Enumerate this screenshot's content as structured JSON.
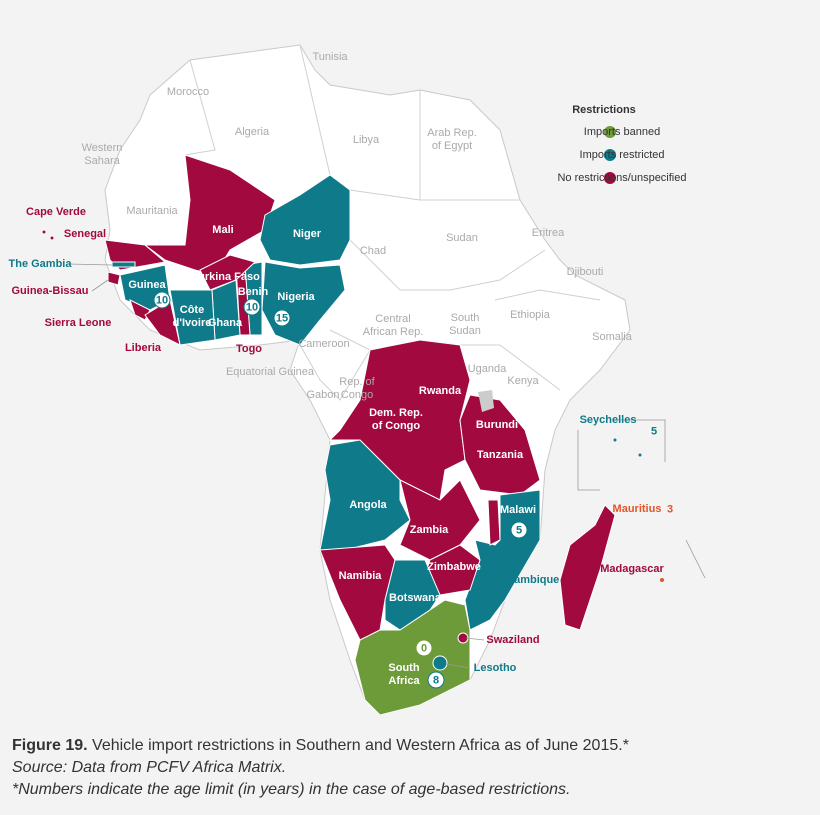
{
  "legend": {
    "title": "Restrictions",
    "items": [
      {
        "label": "Imports banned",
        "color": "#6e9b3a"
      },
      {
        "label": "Imports restricted",
        "color": "#0f7a89"
      },
      {
        "label": "No restrictions/unspecified",
        "color": "#a1093f"
      }
    ]
  },
  "country_labels": [
    [
      "Tunisia"
    ],
    [
      "Morocco"
    ],
    [
      "Algeria"
    ],
    [
      "Libya"
    ],
    [
      "Arab Rep.",
      "of Egypt"
    ],
    [
      "Western",
      "Sahara"
    ],
    [
      "Mauritania"
    ],
    [
      "Chad"
    ],
    [
      "Sudan"
    ],
    [
      "Eritrea"
    ],
    [
      "Djibouti"
    ],
    [
      "Ethiopia"
    ],
    [
      "Somalia"
    ],
    [
      "South",
      "Sudan"
    ],
    [
      "Central",
      "African Rep."
    ],
    [
      "Cameroon"
    ],
    [
      "Equatorial Guinea"
    ],
    [
      "Gabon"
    ],
    [
      "Rep. of",
      "Congo"
    ],
    [
      "Uganda"
    ],
    [
      "Kenya"
    ],
    [
      "Cape Verde"
    ],
    [
      "Senegal"
    ],
    [
      "The Gambia"
    ],
    [
      "Guinea-Bissau"
    ],
    [
      "Sierra Leone"
    ],
    [
      "Liberia"
    ],
    [
      "Mali"
    ],
    [
      "Niger"
    ],
    [
      "Burkina Faso"
    ],
    [
      "Guinea"
    ],
    [
      "Côte",
      "d'Ivoire"
    ],
    [
      "Ghana"
    ],
    [
      "Benin"
    ],
    [
      "Nigeria"
    ],
    [
      "Togo"
    ],
    [
      "Rwanda"
    ],
    [
      "Dem. Rep.",
      "of Congo"
    ],
    [
      "Burundi"
    ],
    [
      "Tanzania"
    ],
    [
      "Angola"
    ],
    [
      "Zambia"
    ],
    [
      "Malawi"
    ],
    [
      "Zimbabwe"
    ],
    [
      "Namibia"
    ],
    [
      "Botswana"
    ],
    [
      "Mozambique"
    ],
    [
      "Swaziland"
    ],
    [
      "South",
      "Africa"
    ],
    [
      "Lesotho"
    ],
    [
      "Seychelles"
    ],
    [
      "Mauritius"
    ],
    [
      "Madagascar"
    ]
  ],
  "age_limits": [
    10,
    10,
    15,
    5,
    0,
    8,
    5,
    3
  ],
  "caption": {
    "figure": "Figure 19.",
    "text": "Vehicle import restrictions in Southern and Western Africa as of June 2015.*",
    "source": "Source: Data from PCFV Africa Matrix.",
    "note": "*Numbers indicate the age limit (in years) in the case of age-based restrictions."
  }
}
